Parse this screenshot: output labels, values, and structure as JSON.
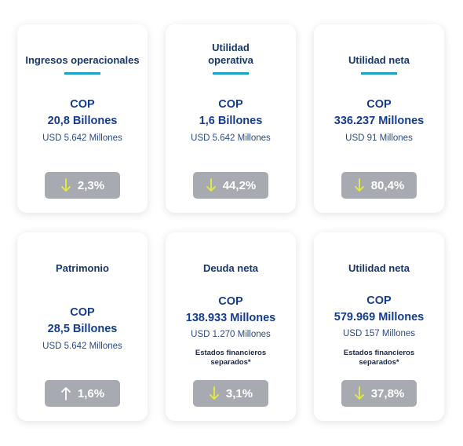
{
  "colors": {
    "title": "#17366a",
    "value": "#143c8c",
    "underline": "#1ea2c4",
    "badge_bg": "#a7aab0",
    "arrow_down": "#e6ec3c",
    "arrow_up": "#ffffff"
  },
  "cards": [
    {
      "title": "Ingresos operacionales",
      "currency": "COP",
      "amount": "20,8 Billones",
      "usd": "USD 5.642 Millones",
      "change": "2,3%",
      "direction": "down",
      "arrow_icon": "arrow-down-icon"
    },
    {
      "title": "Utilidad operativa",
      "currency": "COP",
      "amount": "1,6 Billones",
      "usd": "USD 5.642 Millones",
      "change": "44,2%",
      "direction": "down",
      "arrow_icon": "arrow-down-icon"
    },
    {
      "title": "Utilidad neta",
      "currency": "COP",
      "amount": "336.237 Millones",
      "usd": "USD 91 Millones",
      "change": "80,4%",
      "direction": "down",
      "arrow_icon": "arrow-down-icon"
    },
    {
      "title": "Patrimonio",
      "currency": "COP",
      "amount": "28,5 Billones",
      "usd": "USD 5.642 Millones",
      "change": "1,6%",
      "direction": "up",
      "arrow_icon": "arrow-up-icon"
    },
    {
      "title": "Deuda neta",
      "currency": "COP",
      "amount": "138.933 Millones",
      "usd": "USD 1.270 Millones",
      "note_line1": "Estados financieros",
      "note_line2": "separados*",
      "change": "3,1%",
      "direction": "down",
      "arrow_icon": "arrow-down-icon"
    },
    {
      "title": "Utilidad neta",
      "currency": "COP",
      "amount": "579.969 Millones",
      "usd": "USD 157 Millones",
      "note_line1": "Estados financieros",
      "note_line2": "separados*",
      "change": "37,8%",
      "direction": "down",
      "arrow_icon": "arrow-down-icon"
    }
  ]
}
